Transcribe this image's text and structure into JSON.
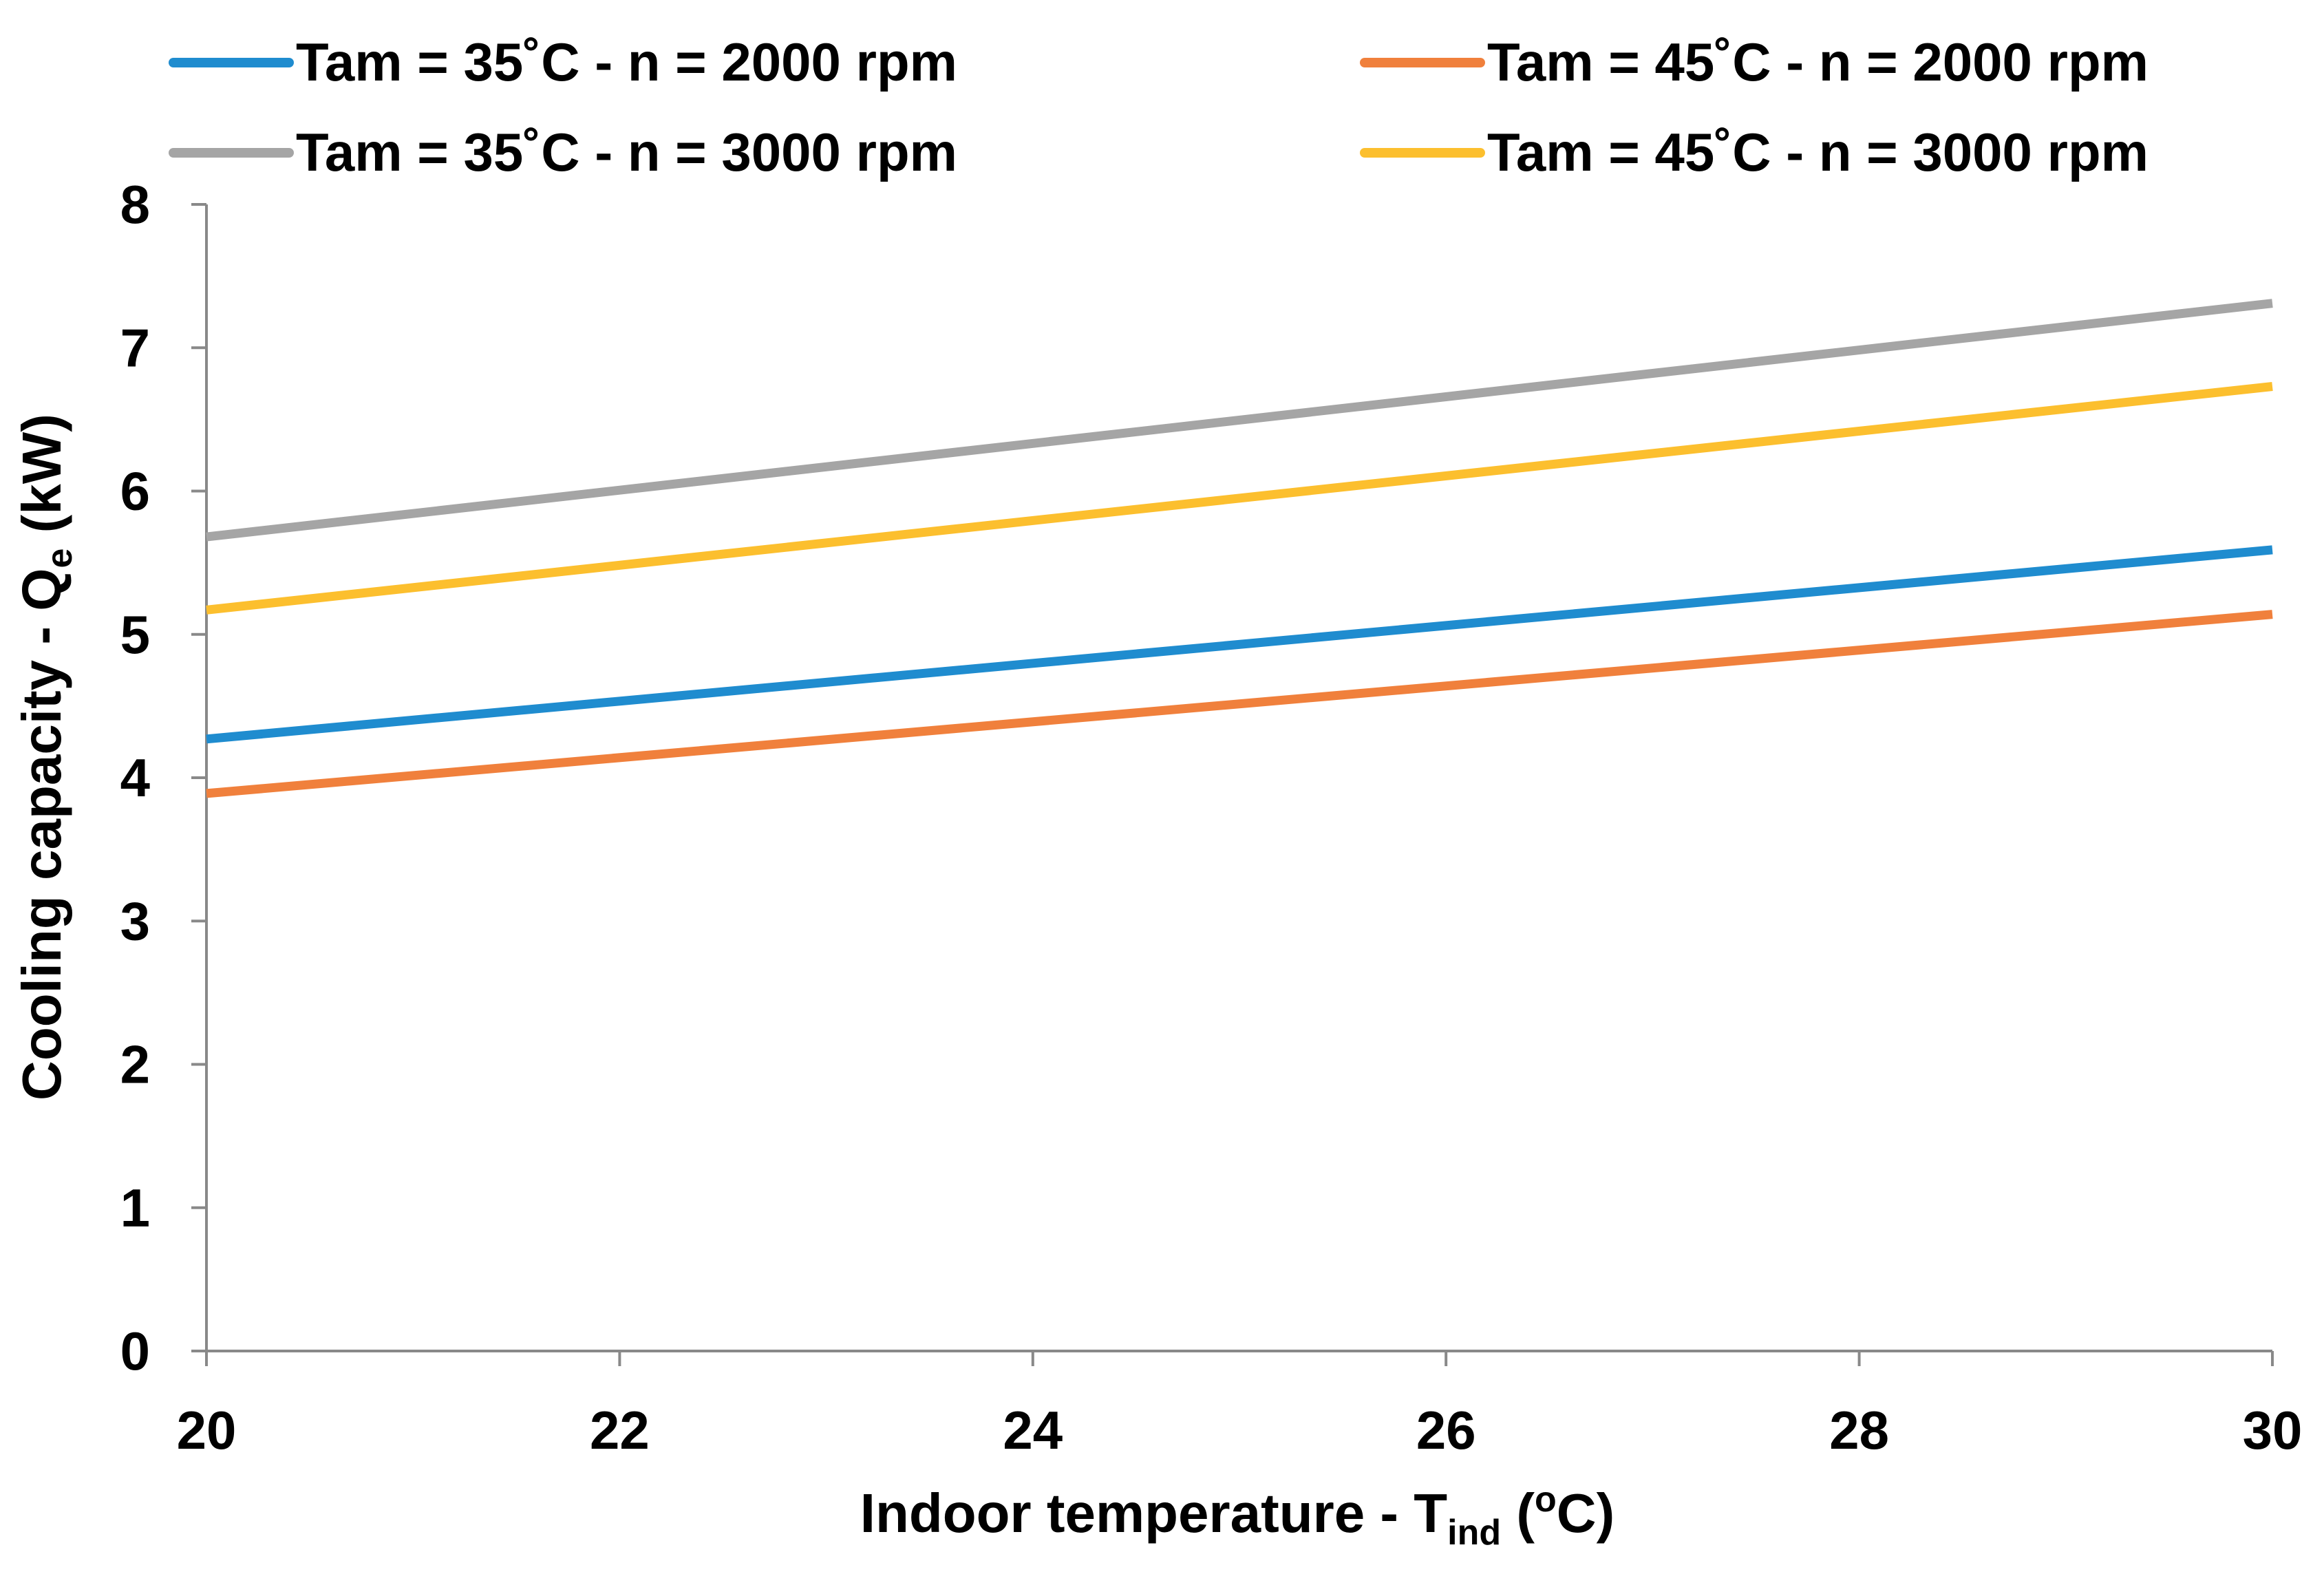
{
  "chart_data": {
    "type": "line",
    "xlabel": {
      "main": "Indoor temperature - T",
      "sub": "ind",
      "suffix_sup": "o",
      "suffix": "C)",
      "open": " ("
    },
    "ylabel": {
      "main": "Cooling capacity - Q",
      "sub": "e",
      "suffix": " (kW)"
    },
    "xlim": [
      20,
      30
    ],
    "ylim": [
      0,
      8
    ],
    "x_ticks": [
      "20",
      "22",
      "24",
      "26",
      "28",
      "30"
    ],
    "y_ticks": [
      "0",
      "1",
      "2",
      "3",
      "4",
      "5",
      "6",
      "7",
      "8"
    ],
    "x": [
      20,
      30
    ],
    "legend_position": "top",
    "series": [
      {
        "name": "Tam = 35˚C - n = 2000 rpm",
        "color": "#1f8ccf",
        "values": [
          4.27,
          5.59
        ]
      },
      {
        "name": "Tam = 45˚C - n = 2000 rpm",
        "color": "#f0803c",
        "values": [
          3.89,
          5.14
        ]
      },
      {
        "name": "Tam = 35˚C - n = 3000 rpm",
        "color": "#a5a5a5",
        "values": [
          5.68,
          7.31
        ]
      },
      {
        "name": "Tam = 45˚C - n = 3000 rpm",
        "color": "#fcbf2e",
        "values": [
          5.17,
          6.73
        ]
      }
    ]
  }
}
